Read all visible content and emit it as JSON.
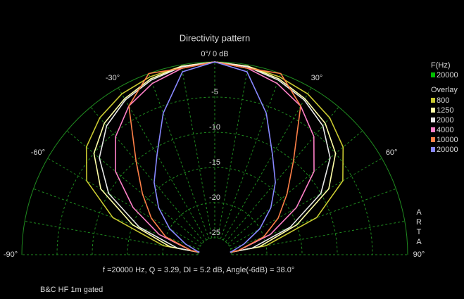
{
  "chart_data": {
    "type": "polar",
    "title": "Directivity pattern",
    "theta": [
      -90,
      -80,
      -70,
      -60,
      -50,
      -40,
      -30,
      -20,
      -10,
      0,
      10,
      20,
      30,
      40,
      50,
      60,
      70,
      80,
      90
    ],
    "rlim": [
      -27.4,
      0
    ],
    "rticks": [
      {
        "value": 0,
        "label": "0°/ 0 dB"
      },
      -5,
      -10,
      -15,
      -20,
      -25
    ],
    "thetaticks": [
      {
        "value": -90,
        "label": "-90°"
      },
      {
        "value": -60,
        "label": "-60°"
      },
      {
        "value": -30,
        "label": "-30°"
      },
      {
        "value": 30,
        "label": "30°"
      },
      {
        "value": 60,
        "label": "60°"
      },
      {
        "value": 90,
        "label": "90°"
      }
    ],
    "thetagrid": [
      -90,
      -80,
      -70,
      -60,
      -50,
      -40,
      -30,
      -20,
      -10,
      0,
      10,
      20,
      30,
      40,
      50,
      60,
      70,
      80,
      90
    ],
    "grid_color": "#1f8a1f",
    "current_title": "F(Hz)",
    "current": {
      "name": "20000",
      "color": "#00c000"
    },
    "legend_title": "Overlay",
    "series": [
      {
        "name": "800",
        "color": "#c8c830",
        "values": [
          -27,
          -20,
          -12,
          -6.4,
          -3.6,
          -2,
          -1,
          -0.5,
          -0.2,
          0,
          -0.2,
          -0.5,
          -1,
          -2,
          -3.6,
          -6.4,
          -12,
          -20,
          -27
        ]
      },
      {
        "name": "1250",
        "color": "#ffffa8",
        "values": [
          -27,
          -21,
          -15,
          -8.7,
          -5,
          -3,
          -1.8,
          -0.8,
          -0.2,
          0,
          -0.2,
          -0.8,
          -1.8,
          -3,
          -5,
          -8.7,
          -15,
          -21,
          -27
        ]
      },
      {
        "name": "2000",
        "color": "#e8e8e8",
        "values": [
          -27,
          -22,
          -16,
          -10,
          -6,
          -3.5,
          -2,
          -1,
          -0.3,
          0,
          -0.3,
          -1,
          -2,
          -3.5,
          -6,
          -10,
          -16,
          -22,
          -27
        ]
      },
      {
        "name": "4000",
        "color": "#ff80c8",
        "values": [
          -27,
          -24,
          -19,
          -14,
          -9,
          -5.5,
          -3,
          -1.5,
          -0.5,
          0,
          -0.5,
          -1.5,
          -3,
          -5.5,
          -9,
          -14,
          -19,
          -24,
          -27
        ]
      },
      {
        "name": "10000",
        "color": "#ff8048",
        "values": [
          -27,
          -24,
          -20,
          -17,
          -14,
          -10,
          -3,
          0,
          -0.5,
          0,
          -0.5,
          0,
          -3,
          -10,
          -14,
          -17,
          -20,
          -24,
          -27
        ]
      },
      {
        "name": "20000",
        "color": "#8888ff",
        "values": [
          -27,
          -25,
          -23,
          -20,
          -17,
          -14,
          -11,
          -6,
          -1,
          0,
          -1,
          -6,
          -11,
          -14,
          -17,
          -20,
          -23,
          -25,
          -27
        ]
      }
    ],
    "footer": "f =20000 Hz,  Q =  3.29,  DI =  5.2 dB,  Angle(-6dB) =  38.0°",
    "note": "B&C HF 1m gated",
    "brand": "ARTA"
  }
}
